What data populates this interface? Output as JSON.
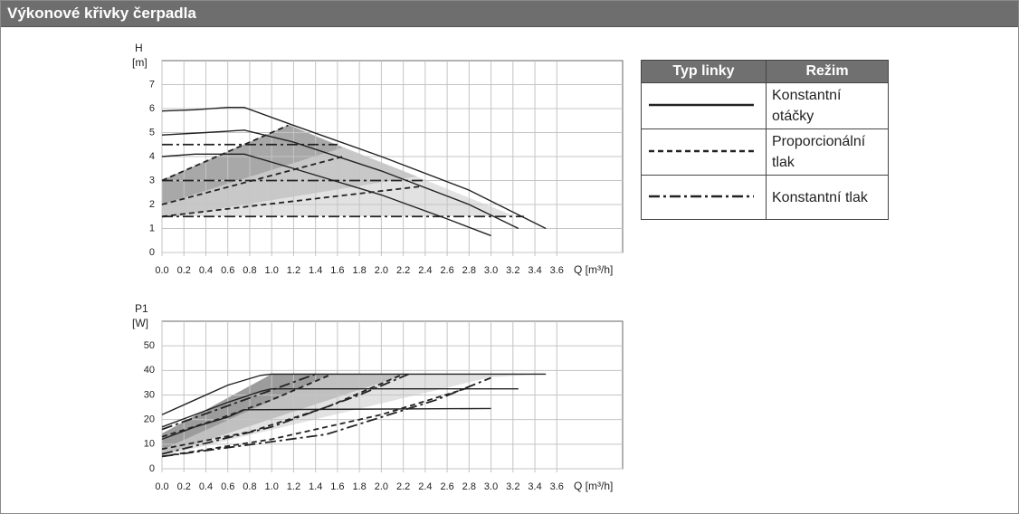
{
  "header": {
    "title": "Výkonové křivky čerpadla"
  },
  "chart_data": [
    {
      "type": "line",
      "y_label": "H",
      "y_unit": "[m]",
      "x_label": "Q [m³/h]",
      "xlim": [
        0,
        4.2
      ],
      "ylim": [
        0,
        8
      ],
      "xticks": [
        {
          "value": 0,
          "label": "0.0"
        },
        0.2,
        0.4,
        0.6,
        0.8,
        {
          "value": 1,
          "label": "1.0"
        },
        1.2,
        1.4,
        1.6,
        1.8,
        {
          "value": 2,
          "label": "2.0"
        },
        2.2,
        2.4,
        2.6,
        2.8,
        {
          "value": 3,
          "label": "3.0"
        },
        3.2,
        3.4,
        3.6
      ],
      "yticks": [
        0,
        1,
        2,
        3,
        4,
        5,
        6,
        7
      ],
      "grid": true,
      "series": [
        {
          "style": "solid",
          "color": "#222222",
          "x": [
            0,
            0.3,
            0.6,
            0.75,
            1.2,
            2.0,
            2.8,
            3.5
          ],
          "values": [
            5.9,
            5.95,
            6.05,
            6.05,
            5.3,
            4.0,
            2.6,
            1.0
          ]
        },
        {
          "style": "solid",
          "color": "#222222",
          "x": [
            0,
            0.4,
            0.75,
            1.2,
            2.0,
            2.8,
            3.25
          ],
          "values": [
            4.9,
            5.0,
            5.1,
            4.6,
            3.4,
            2.0,
            1.0
          ]
        },
        {
          "style": "solid",
          "color": "#222222",
          "x": [
            0,
            0.3,
            0.75,
            1.2,
            2.0,
            2.6,
            3.0
          ],
          "values": [
            4.0,
            4.1,
            4.1,
            3.5,
            2.4,
            1.4,
            0.7
          ]
        },
        {
          "style": "dashed",
          "color": "#222222",
          "x": [
            0,
            1.15
          ],
          "values": [
            3.0,
            5.3
          ]
        },
        {
          "style": "dashed",
          "color": "#222222",
          "x": [
            0,
            1.65
          ],
          "values": [
            2.0,
            4.0
          ]
        },
        {
          "style": "dashed",
          "color": "#222222",
          "x": [
            0,
            2.35
          ],
          "values": [
            1.5,
            2.75
          ]
        },
        {
          "style": "dashdot",
          "color": "#222222",
          "x": [
            0,
            1.6
          ],
          "values": [
            4.5,
            4.5
          ]
        },
        {
          "style": "dashdot",
          "color": "#222222",
          "x": [
            0,
            2.4
          ],
          "values": [
            3.0,
            3.0
          ]
        },
        {
          "style": "dashdot",
          "color": "#222222",
          "x": [
            0,
            3.3
          ],
          "values": [
            1.5,
            1.5
          ]
        }
      ]
    },
    {
      "type": "line",
      "y_label": "P1",
      "y_unit": "[W]",
      "x_label": "Q [m³/h]",
      "xlim": [
        0,
        4.2
      ],
      "ylim": [
        0,
        60
      ],
      "xticks": [
        {
          "value": 0,
          "label": "0.0"
        },
        0.2,
        0.4,
        0.6,
        0.8,
        {
          "value": 1,
          "label": "1.0"
        },
        1.2,
        1.4,
        1.6,
        1.8,
        {
          "value": 2,
          "label": "2.0"
        },
        2.2,
        2.4,
        2.6,
        2.8,
        {
          "value": 3,
          "label": "3.0"
        },
        3.2,
        3.4,
        3.6
      ],
      "yticks": [
        0,
        10,
        20,
        30,
        40,
        50
      ],
      "grid": true,
      "series": [
        {
          "style": "solid",
          "color": "#222222",
          "x": [
            0,
            0.3,
            0.6,
            0.9,
            1.0,
            3.5
          ],
          "values": [
            22,
            28,
            34,
            38,
            38.5,
            38.5
          ]
        },
        {
          "style": "solid",
          "color": "#222222",
          "x": [
            0,
            0.3,
            0.6,
            0.9,
            1.0,
            3.25
          ],
          "values": [
            17,
            22,
            27,
            31.5,
            32.5,
            32.5
          ]
        },
        {
          "style": "solid",
          "color": "#222222",
          "x": [
            0,
            0.3,
            0.6,
            0.75,
            3.0
          ],
          "values": [
            12,
            17,
            21,
            24,
            24.5
          ]
        },
        {
          "style": "dashed",
          "color": "#222222",
          "x": [
            0,
            0.5,
            1.0,
            1.55
          ],
          "values": [
            13,
            20,
            28,
            38.5
          ]
        },
        {
          "style": "dashed",
          "color": "#222222",
          "x": [
            0,
            0.8,
            1.5,
            2.2
          ],
          "values": [
            8,
            15,
            25,
            38.5
          ]
        },
        {
          "style": "dashed",
          "color": "#222222",
          "x": [
            0,
            1.0,
            2.0,
            2.8
          ],
          "values": [
            5,
            12,
            22,
            33
          ]
        },
        {
          "style": "dashdot",
          "color": "#222222",
          "x": [
            0,
            0.5,
            1.0,
            1.4
          ],
          "values": [
            16,
            24,
            32,
            38.5
          ]
        },
        {
          "style": "dashdot",
          "color": "#222222",
          "x": [
            0,
            1.0,
            1.8,
            2.25
          ],
          "values": [
            6,
            17,
            30,
            38.5
          ]
        },
        {
          "style": "dashdot",
          "color": "#222222",
          "x": [
            0,
            1.5,
            2.5,
            3.0
          ],
          "values": [
            5,
            14,
            28,
            37
          ]
        }
      ]
    }
  ],
  "legend_table": {
    "columns": [
      "Typ linky",
      "Režim"
    ],
    "rows": [
      {
        "style": "solid",
        "label": "Konstantní otáčky"
      },
      {
        "style": "dashed",
        "label": "Proporcionální tlak"
      },
      {
        "style": "dashdot",
        "label": "Konstantní tlak"
      }
    ]
  }
}
